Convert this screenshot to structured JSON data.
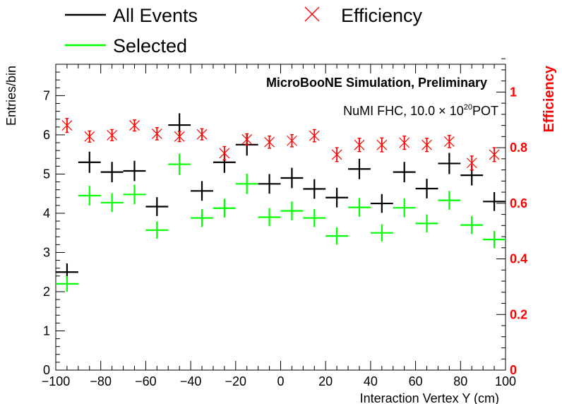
{
  "chart_data": {
    "type": "scatter",
    "title": "",
    "annotations": {
      "collaboration": "MicroBooNE Simulation, Preliminary",
      "beam_prefix": "NuMI FHC, 10.0",
      "beam_times": "×",
      "beam_base": "10",
      "beam_exp": "20",
      "beam_suffix": "POT"
    },
    "xlabel": "Interaction Vertex Y (cm)",
    "ylabel": "Entries/bin",
    "y2label": "Efficiency",
    "xlim": [
      -100,
      100
    ],
    "ylim": [
      0,
      7.8
    ],
    "y2lim": [
      0,
      1.1
    ],
    "x_ticks": [
      -100,
      -80,
      -60,
      -40,
      -20,
      0,
      20,
      40,
      60,
      80,
      100
    ],
    "x_tick_labels": [
      "−100",
      "−80",
      "−60",
      "−40",
      "−20",
      "0",
      "20",
      "40",
      "60",
      "80",
      "100"
    ],
    "y_ticks": [
      0,
      1,
      2,
      3,
      4,
      5,
      6,
      7
    ],
    "y_tick_labels": [
      "0",
      "1",
      "2",
      "3",
      "4",
      "5",
      "6",
      "7"
    ],
    "y2_ticks": [
      0,
      0.2,
      0.4,
      0.6,
      0.8,
      1.0
    ],
    "y2_tick_labels": [
      "0",
      "0.2",
      "0.4",
      "0.6",
      "0.8",
      "1"
    ],
    "bin_width": 10,
    "x": [
      -95,
      -85,
      -75,
      -65,
      -55,
      -45,
      -35,
      -25,
      -15,
      -5,
      5,
      15,
      25,
      35,
      45,
      55,
      65,
      75,
      85,
      95
    ],
    "series": [
      {
        "name": "All Events",
        "color": "#000000",
        "axis": "left",
        "marker": "cross",
        "values": [
          2.5,
          5.3,
          5.05,
          5.08,
          4.17,
          6.25,
          4.57,
          5.3,
          5.75,
          4.75,
          4.9,
          4.62,
          4.4,
          5.13,
          4.25,
          5.05,
          4.63,
          5.27,
          4.97,
          4.3
        ],
        "errors": [
          0.22,
          0.27,
          0.26,
          0.26,
          0.24,
          0.3,
          0.25,
          0.27,
          0.28,
          0.25,
          0.26,
          0.25,
          0.25,
          0.26,
          0.24,
          0.26,
          0.25,
          0.27,
          0.26,
          0.24
        ]
      },
      {
        "name": "Selected",
        "color": "#00ff00",
        "axis": "left",
        "marker": "cross",
        "values": [
          2.2,
          4.45,
          4.27,
          4.48,
          3.57,
          5.25,
          3.88,
          4.13,
          4.75,
          3.9,
          4.06,
          3.88,
          3.42,
          4.15,
          3.5,
          4.14,
          3.74,
          4.33,
          3.7,
          3.33
        ],
        "errors": [
          0.2,
          0.25,
          0.24,
          0.25,
          0.22,
          0.27,
          0.23,
          0.24,
          0.26,
          0.23,
          0.24,
          0.23,
          0.22,
          0.24,
          0.22,
          0.24,
          0.23,
          0.24,
          0.23,
          0.22
        ]
      },
      {
        "name": "Efficiency",
        "color": "#ff0000",
        "axis": "right",
        "marker": "x",
        "values": [
          0.88,
          0.84,
          0.845,
          0.88,
          0.85,
          0.84,
          0.848,
          0.78,
          0.83,
          0.82,
          0.825,
          0.843,
          0.775,
          0.81,
          0.81,
          0.818,
          0.81,
          0.822,
          0.745,
          0.775
        ],
        "errors": [
          0.025,
          0.02,
          0.02,
          0.02,
          0.022,
          0.018,
          0.02,
          0.024,
          0.02,
          0.022,
          0.022,
          0.022,
          0.025,
          0.024,
          0.025,
          0.024,
          0.024,
          0.022,
          0.025,
          0.025
        ]
      }
    ],
    "legend_placement": "top, above plot",
    "grid": false
  }
}
